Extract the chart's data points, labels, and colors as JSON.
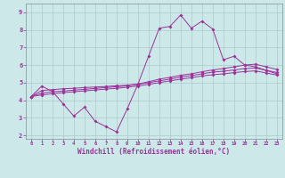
{
  "xlabel": "Windchill (Refroidissement éolien,°C)",
  "bg_color": "#cce8e8",
  "line_color": "#993399",
  "grid_color": "#aacccc",
  "xlim": [
    -0.5,
    23.5
  ],
  "ylim": [
    1.8,
    9.5
  ],
  "xticks": [
    0,
    1,
    2,
    3,
    4,
    5,
    6,
    7,
    8,
    9,
    10,
    11,
    12,
    13,
    14,
    15,
    16,
    17,
    18,
    19,
    20,
    21,
    22,
    23
  ],
  "yticks": [
    2,
    3,
    4,
    5,
    6,
    7,
    8,
    9
  ],
  "line1_x": [
    0,
    1,
    2,
    3,
    4,
    5,
    6,
    7,
    8,
    9,
    10,
    11,
    12,
    13,
    14,
    15,
    16,
    17,
    18,
    19,
    20,
    21,
    22,
    23
  ],
  "line1_y": [
    4.2,
    4.8,
    4.5,
    3.8,
    3.1,
    3.6,
    2.8,
    2.5,
    2.2,
    3.5,
    4.9,
    6.5,
    8.1,
    8.2,
    8.85,
    8.1,
    8.5,
    8.05,
    6.3,
    6.5,
    6.0,
    5.9,
    5.7,
    5.5
  ],
  "line2_x": [
    0,
    1,
    2,
    3,
    4,
    5,
    6,
    7,
    8,
    9,
    10,
    11,
    12,
    13,
    14,
    15,
    16,
    17,
    18,
    19,
    20,
    21,
    22,
    23
  ],
  "line2_y": [
    4.2,
    4.55,
    4.6,
    4.65,
    4.68,
    4.72,
    4.75,
    4.78,
    4.82,
    4.85,
    4.92,
    5.05,
    5.2,
    5.3,
    5.42,
    5.5,
    5.62,
    5.72,
    5.8,
    5.9,
    6.0,
    6.05,
    5.9,
    5.75
  ],
  "line3_x": [
    0,
    1,
    2,
    3,
    4,
    5,
    6,
    7,
    8,
    9,
    10,
    11,
    12,
    13,
    14,
    15,
    16,
    17,
    18,
    19,
    20,
    21,
    22,
    23
  ],
  "line3_y": [
    4.2,
    4.4,
    4.48,
    4.52,
    4.57,
    4.62,
    4.67,
    4.72,
    4.77,
    4.82,
    4.9,
    5.0,
    5.1,
    5.2,
    5.32,
    5.4,
    5.5,
    5.6,
    5.65,
    5.72,
    5.8,
    5.83,
    5.7,
    5.58
  ],
  "line4_x": [
    0,
    1,
    2,
    3,
    4,
    5,
    6,
    7,
    8,
    9,
    10,
    11,
    12,
    13,
    14,
    15,
    16,
    17,
    18,
    19,
    20,
    21,
    22,
    23
  ],
  "line4_y": [
    4.2,
    4.3,
    4.37,
    4.43,
    4.48,
    4.53,
    4.58,
    4.63,
    4.68,
    4.74,
    4.81,
    4.9,
    5.0,
    5.1,
    5.2,
    5.28,
    5.38,
    5.45,
    5.5,
    5.57,
    5.63,
    5.67,
    5.55,
    5.43
  ]
}
